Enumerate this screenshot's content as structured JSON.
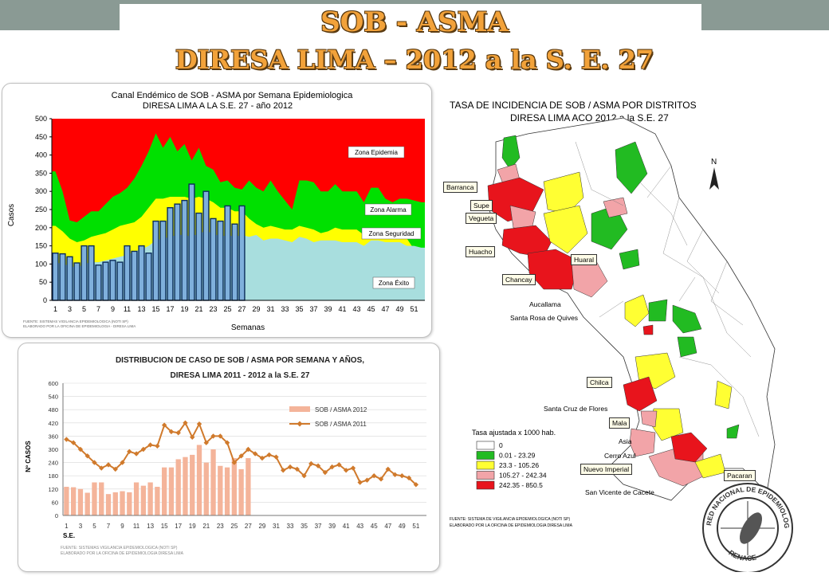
{
  "header": {
    "title_line1": "SOB - ASMA",
    "title_line2": "DIRESA LIMA – 2012 a la  S. E. 27"
  },
  "chart1": {
    "title_line1": "Canal Endémico de SOB - ASMA  por Semana Epidemiologica",
    "title_line2": "DIRESA LIMA A LA S.E. 27 - año 2012",
    "ylabel": "Casos",
    "xlabel": "Semanas",
    "zone_epidemia": "Zona Epidemia",
    "zone_alarma": "Zona Alarma",
    "zone_seguridad": "Zona Seguridad",
    "zone_exito": "Zona Éxito",
    "source_line1": "FUENTE: SISTEMAS VIGILANCIA  EPIDEMIOLOGICA  (NOTI SP)",
    "source_line2": "ELABORADO POR LA OFICINA DE EPIDEMIOLOGIA - DIRESA LIMA"
  },
  "chart2": {
    "title_line1": "DISTRIBUCION DE CASO DE SOB / ASMA POR SEMANA Y AÑOS,",
    "title_line2": "DIRESA LIMA  2011 - 2012  a la S.E.  27",
    "ylabel": "Nº CASOS",
    "xlabel": "S.E.",
    "legend_2012": "SOB / ASMA 2012",
    "legend_2011": "SOB / ASMA 2011",
    "source_line1": "FUENTE: SISTEMAS VIGILANCIA EPIDEMIOLOGICA  (NOTI SP)",
    "source_line2": "ELABORADO POR LA OFICINA DE EPIDEMIOLOGIA  DIRESA LIMA"
  },
  "map": {
    "title_line1": "TASA DE INCIDENCIA DE SOB / ASMA POR DISTRITOS",
    "title_line2": "DIRESA LIMA ACO 2012 a la S.E. 27",
    "legend_title": "Tasa ajustada x 1000 hab.",
    "legend": [
      {
        "label": "0",
        "color": "#ffffff"
      },
      {
        "label": "0.01 - 23.29",
        "color": "#22bb22"
      },
      {
        "label": "23.3 - 105.26",
        "color": "#ffff33"
      },
      {
        "label": "105.27 - 242.34",
        "color": "#f2a4a8"
      },
      {
        "label": "242.35 - 850.5",
        "color": "#e8141c"
      }
    ],
    "places": {
      "barranca": "Barranca",
      "supe": "Supe",
      "vegueta": "Vegueta",
      "huacho": "Huacho",
      "huaral": "Huaral",
      "chancay": "Chancay",
      "aucallama": "Aucallama",
      "santa_rosa": "Santa Rosa de Quives",
      "chilca": "Chilca",
      "santa_cruz": "Santa Cruz de Flores",
      "mala": "Mala",
      "asia": "Asia",
      "cerro_azul": "Cerro Azul",
      "nuevo_imperial": "Nuevo Imperial",
      "pacaran": "Pacaran",
      "san_vicente": "San Vicente de Cacete"
    },
    "north": "N",
    "source_line1": "FUENTE: SISTEMA DE VIGILANCIA EPIDEMIOLOGICA (NOTI SP)",
    "source_line2": "ELABORADO POR LA OFICINA DE EPIDEMIOLOGIA DIRESA LIMA",
    "seal_top": "RED NACIONAL DE EPIDEMIOLOGIA",
    "seal_bottom": "RENACE"
  },
  "chart_data": [
    {
      "type": "area",
      "title": "Canal Endémico de SOB - ASMA  por Semana Epidemiologica DIRESA LIMA A LA S.E. 27 - año 2012",
      "xlabel": "Semanas",
      "ylabel": "Casos",
      "ylim": [
        0,
        500
      ],
      "yticks": [
        0,
        50,
        100,
        150,
        200,
        250,
        300,
        350,
        400,
        450,
        500
      ],
      "xlim": [
        1,
        52
      ],
      "xticks": [
        1,
        3,
        5,
        7,
        9,
        11,
        13,
        15,
        17,
        19,
        21,
        23,
        25,
        27,
        29,
        31,
        33,
        35,
        37,
        39,
        41,
        43,
        45,
        47,
        49,
        51
      ],
      "colors": {
        "epidemia": "#ff0000",
        "alarma": "#00e000",
        "seguridad": "#ffff00",
        "exito": "#a8dede",
        "bars": "#7fb0dc"
      },
      "zone_exito_upper": [
        105,
        100,
        95,
        90,
        100,
        105,
        105,
        110,
        115,
        120,
        125,
        135,
        140,
        150,
        165,
        170,
        175,
        180,
        180,
        175,
        185,
        190,
        185,
        175,
        180,
        175,
        180,
        175,
        180,
        165,
        170,
        170,
        165,
        160,
        175,
        170,
        160,
        165,
        165,
        165,
        160,
        160,
        160,
        150,
        165,
        165,
        160,
        160,
        160,
        150,
        150,
        145
      ],
      "zone_seguridad_upper": [
        205,
        190,
        170,
        160,
        165,
        175,
        180,
        185,
        195,
        205,
        210,
        215,
        230,
        255,
        280,
        280,
        285,
        285,
        285,
        280,
        285,
        280,
        270,
        255,
        255,
        245,
        245,
        225,
        210,
        200,
        205,
        200,
        195,
        195,
        205,
        200,
        195,
        185,
        190,
        200,
        195,
        195,
        195,
        180,
        195,
        190,
        185,
        185,
        180,
        170,
        140,
        120
      ],
      "zone_alarma_upper": [
        355,
        300,
        220,
        215,
        230,
        245,
        245,
        265,
        285,
        295,
        310,
        335,
        370,
        410,
        460,
        420,
        450,
        410,
        430,
        385,
        420,
        370,
        360,
        325,
        330,
        310,
        305,
        330,
        310,
        300,
        330,
        300,
        275,
        250,
        330,
        330,
        325,
        300,
        300,
        320,
        300,
        300,
        300,
        270,
        310,
        310,
        280,
        270,
        280,
        280,
        275,
        270
      ],
      "series": [
        {
          "name": "2012",
          "values": [
            130,
            128,
            120,
            103,
            150,
            150,
            97,
            105,
            110,
            105,
            150,
            135,
            150,
            130,
            218,
            218,
            255,
            265,
            275,
            320,
            240,
            300,
            225,
            218,
            260,
            210,
            260
          ]
        }
      ]
    },
    {
      "type": "bar+line",
      "title": "DISTRIBUCION DE CASO DE SOB / ASMA POR SEMANA Y AÑOS, DIRESA LIMA  2011 - 2012  a la S.E.  27",
      "xlabel": "S.E.",
      "ylabel": "Nº CASOS",
      "ylim": [
        0,
        600
      ],
      "yticks": [
        0,
        60,
        120,
        180,
        240,
        300,
        360,
        420,
        480,
        540,
        600
      ],
      "xticks": [
        1,
        3,
        5,
        7,
        9,
        11,
        13,
        15,
        17,
        19,
        21,
        23,
        25,
        27,
        29,
        31,
        33,
        35,
        37,
        39,
        41,
        43,
        45,
        47,
        49,
        51
      ],
      "legend": "right",
      "series": [
        {
          "name": "SOB / ASMA 2012",
          "type": "bar",
          "color": "#f4b49a",
          "values": [
            130,
            128,
            120,
            103,
            150,
            150,
            97,
            105,
            110,
            105,
            150,
            135,
            150,
            130,
            218,
            218,
            255,
            265,
            275,
            320,
            240,
            300,
            225,
            218,
            260,
            210,
            260
          ]
        },
        {
          "name": "SOB / ASMA 2011",
          "type": "line",
          "color": "#d07a2c",
          "values": [
            345,
            330,
            300,
            270,
            240,
            215,
            230,
            210,
            240,
            290,
            280,
            300,
            320,
            315,
            410,
            380,
            375,
            420,
            355,
            415,
            330,
            360,
            360,
            330,
            240,
            270,
            300,
            280,
            260,
            275,
            265,
            205,
            220,
            210,
            180,
            235,
            225,
            195,
            220,
            230,
            205,
            215,
            150,
            160,
            180,
            165,
            210,
            185,
            180,
            170,
            140
          ]
        }
      ]
    }
  ]
}
